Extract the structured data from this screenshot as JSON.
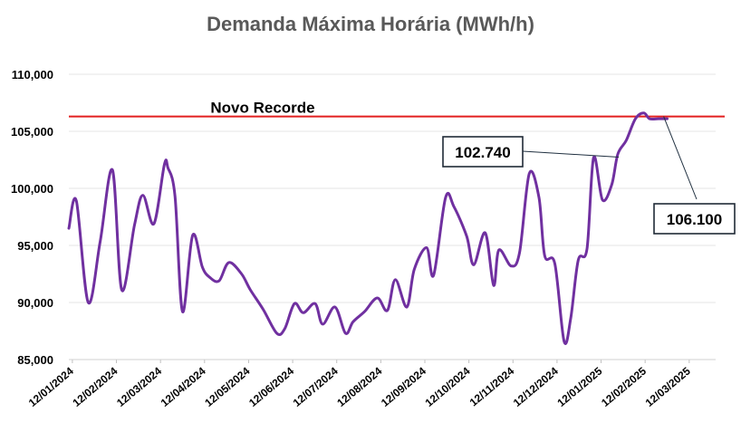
{
  "chart_data": {
    "type": "line",
    "title": "Demanda Máxima Horária (MWh/h)",
    "xlabel": "",
    "ylabel": "",
    "ylim": [
      85000,
      110000
    ],
    "y_ticks": [
      85000,
      90000,
      95000,
      100000,
      105000,
      110000
    ],
    "y_tick_labels": [
      "85,000",
      "90,000",
      "95,000",
      "100,000",
      "105,000",
      "110,000"
    ],
    "x_tick_labels": [
      "12/01/2024",
      "12/02/2024",
      "12/03/2024",
      "12/04/2024",
      "12/05/2024",
      "12/06/2024",
      "12/07/2024",
      "12/08/2024",
      "12/09/2024",
      "12/10/2024",
      "12/11/2024",
      "12/12/2024",
      "12/01/2025",
      "12/02/2025",
      "12/03/2025"
    ],
    "x_tick_positions": [
      0,
      1,
      2,
      3,
      4,
      5,
      6,
      7,
      8,
      9,
      10,
      11,
      12,
      13,
      14
    ],
    "xlim": [
      -0.08,
      14.6
    ],
    "grid": true,
    "series": [
      {
        "name": "Demanda Máxima Horária",
        "color": "#7030a0",
        "x": [
          -0.08,
          0.09,
          0.36,
          0.63,
          0.91,
          1.12,
          1.41,
          1.6,
          1.85,
          2.09,
          2.17,
          2.33,
          2.5,
          2.73,
          2.95,
          3.12,
          3.33,
          3.55,
          3.84,
          4.04,
          4.33,
          4.64,
          4.82,
          5.04,
          5.24,
          5.51,
          5.68,
          5.96,
          6.2,
          6.37,
          6.63,
          6.92,
          7.15,
          7.33,
          7.59,
          7.76,
          8.04,
          8.2,
          8.47,
          8.66,
          8.95,
          9.11,
          9.37,
          9.56,
          9.68,
          9.96,
          10.15,
          10.37,
          10.59,
          10.72,
          10.95,
          11.16,
          11.31,
          11.48,
          11.68,
          11.83,
          12.03,
          12.24,
          12.38,
          12.57,
          12.78,
          12.97,
          13.1,
          13.3,
          13.5
        ],
        "values": [
          96500,
          98900,
          90000,
          95300,
          101600,
          91100,
          96800,
          99400,
          96900,
          102100,
          101800,
          99300,
          89200,
          95900,
          93100,
          92200,
          91900,
          93500,
          92500,
          91100,
          89400,
          87300,
          87700,
          89900,
          89100,
          89900,
          88100,
          89600,
          87300,
          88300,
          89200,
          90400,
          89300,
          92000,
          89600,
          92900,
          94800,
          92400,
          99200,
          98400,
          95800,
          93300,
          96100,
          91500,
          94600,
          93200,
          94400,
          101300,
          99200,
          94100,
          93400,
          86600,
          88600,
          93700,
          94700,
          102700,
          99000,
          100300,
          103000,
          104200,
          106100,
          106600,
          106100,
          106100,
          106100
        ]
      }
    ],
    "reference_line": {
      "label": "Novo Recorde",
      "value": 106300,
      "color": "#e21f1f"
    },
    "annotations": [
      {
        "label": "102.740",
        "x": 12.4,
        "value": 102740
      },
      {
        "label": "106.100",
        "x": 14.12,
        "value": 106100
      }
    ]
  }
}
